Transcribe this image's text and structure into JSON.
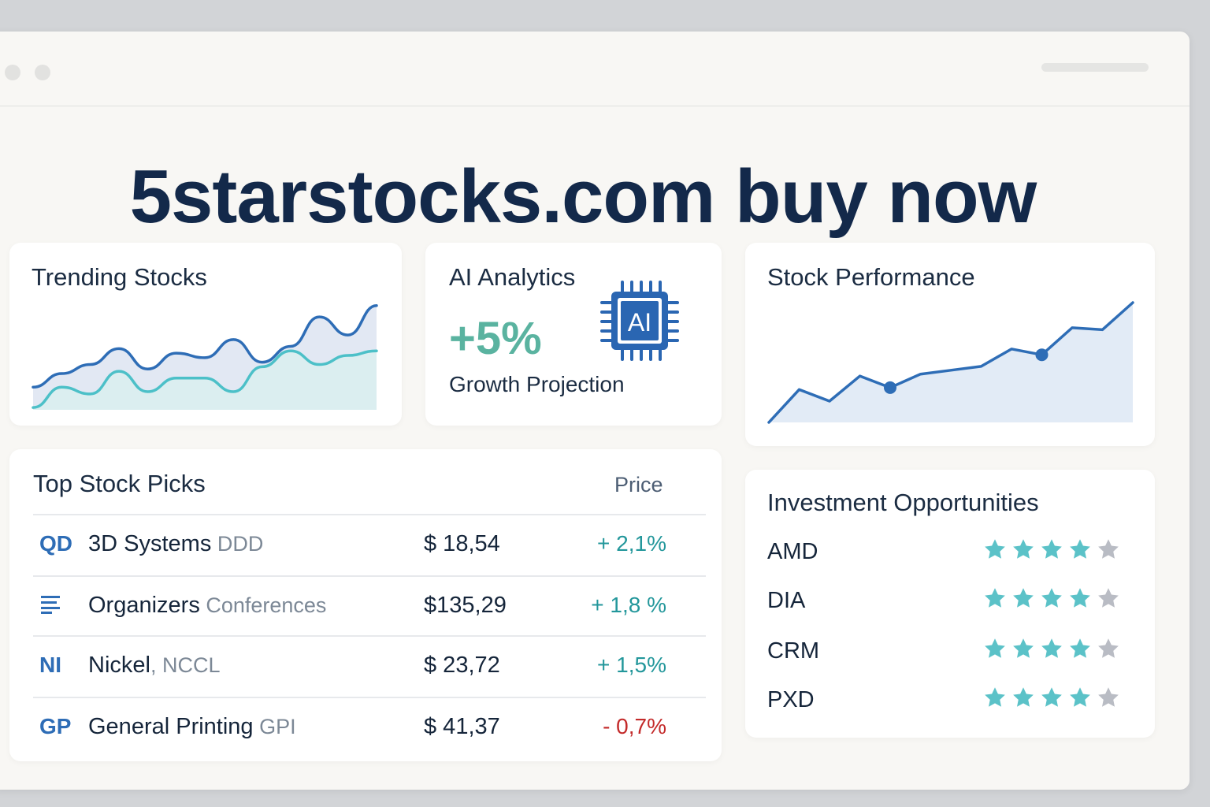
{
  "headline": "5starstocks.com buy now",
  "colors": {
    "accent_teal": "#5ab3a0",
    "line_blue": "#2e6db6",
    "line_teal": "#4cc0c8",
    "star_on": "#5bc2c8",
    "star_off": "#b9bcc4",
    "positive": "#23979b",
    "negative": "#c32a2a"
  },
  "trending": {
    "title": "Trending Stocks",
    "chart_data": {
      "type": "area",
      "series": [
        {
          "values": [
            10,
            16,
            20,
            27,
            18,
            25,
            23,
            31,
            21,
            28,
            41,
            33,
            46
          ]
        },
        {
          "values": [
            1,
            10,
            7,
            17,
            8,
            14,
            14,
            8,
            19,
            26,
            20,
            24,
            26
          ]
        }
      ],
      "grid": false
    }
  },
  "ai": {
    "title": "AI Analytics",
    "value": "+5%",
    "subtitle": "Growth Projection",
    "chip_label": "AI",
    "icon": "ai-chip-icon"
  },
  "performance": {
    "title": "Stock Performance",
    "chart_data": {
      "type": "area",
      "series": [
        {
          "values": [
            0,
            17,
            11,
            24,
            18,
            25,
            27,
            29,
            38,
            35,
            49,
            48,
            62
          ]
        }
      ],
      "highlighted_indices": [
        4,
        9
      ],
      "grid": false
    }
  },
  "picks": {
    "title": "Top Stock Picks",
    "price_header": "Price",
    "rows": [
      {
        "logo": "QD",
        "name": "3D Systems",
        "ticker": " DDD",
        "price": "$ 18,54",
        "change": "+ 2,1%",
        "direction": "up"
      },
      {
        "logo_icon": "lines-icon",
        "name": "Organizers",
        "ticker": " Conferences",
        "price": "$135,29",
        "change": "+ 1,8 %",
        "direction": "up"
      },
      {
        "logo": "NI",
        "name": "Nickel",
        "ticker": ", NCCL",
        "price": "$ 23,72",
        "change": "+ 1,5%",
        "direction": "up"
      },
      {
        "logo": "GP",
        "name": "General Printing",
        "ticker": " GPI",
        "price": "$ 41,37",
        "change": "- 0,7%",
        "direction": "down"
      }
    ]
  },
  "investment": {
    "title": "Investment Opportunities",
    "rows": [
      {
        "symbol": "AMD",
        "rating": 4,
        "max": 5
      },
      {
        "symbol": "DIA",
        "rating": 4,
        "max": 5
      },
      {
        "symbol": "CRM",
        "rating": 4,
        "max": 5
      },
      {
        "symbol": "PXD",
        "rating": 4,
        "max": 5
      }
    ]
  }
}
